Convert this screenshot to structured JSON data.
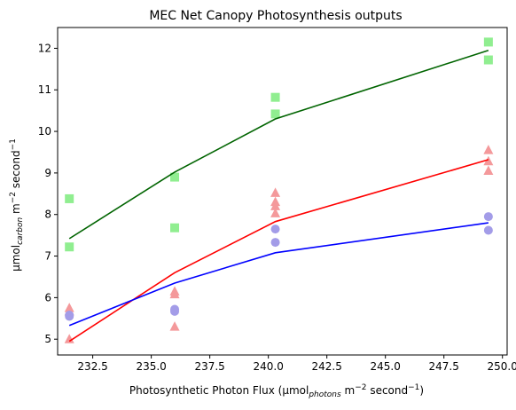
{
  "chart_data": {
    "type": "scatter",
    "title": "MEC Net Canopy Photosynthesis outputs",
    "xlabel": {
      "prefix": "Photosynthetic Photon Flux (µmol",
      "sub": "photons",
      "mid": " m",
      "sup1": "−2",
      "mid2": " second",
      "sup2": "−1",
      "suffix": ")"
    },
    "ylabel": {
      "prefix": "µmol",
      "sub": "carbon",
      "mid": " m",
      "sup1": "−2",
      "mid2": " second",
      "sup2": "−1"
    },
    "xlim": [
      231.0,
      250.2
    ],
    "ylim": [
      4.62,
      12.5
    ],
    "xticks": [
      232.5,
      235.0,
      237.5,
      240.0,
      242.5,
      245.0,
      247.5,
      250.0
    ],
    "xtick_labels": [
      "232.5",
      "235.0",
      "237.5",
      "240.0",
      "242.5",
      "245.0",
      "247.5",
      "250.0"
    ],
    "yticks": [
      5,
      6,
      7,
      8,
      9,
      10,
      11,
      12
    ],
    "ytick_labels": [
      "5",
      "6",
      "7",
      "8",
      "9",
      "10",
      "11",
      "12"
    ],
    "grid": false,
    "series": [
      {
        "marker": "square",
        "color": "#90ee90",
        "line_color": "#006400",
        "points": [
          [
            231.5,
            7.22
          ],
          [
            231.5,
            8.38
          ],
          [
            236.0,
            8.9
          ],
          [
            236.0,
            7.68
          ],
          [
            240.3,
            10.82
          ],
          [
            240.3,
            10.42
          ],
          [
            249.4,
            12.15
          ],
          [
            249.4,
            11.72
          ]
        ],
        "line": [
          [
            231.5,
            7.42
          ],
          [
            236.0,
            9.02
          ],
          [
            240.3,
            10.3
          ],
          [
            249.4,
            11.95
          ]
        ]
      },
      {
        "marker": "triangle",
        "color": "#f4999b",
        "line_color": "#ff0000",
        "points": [
          [
            231.5,
            5.75
          ],
          [
            231.5,
            5.67
          ],
          [
            231.5,
            5.0
          ],
          [
            236.0,
            6.15
          ],
          [
            236.0,
            6.08
          ],
          [
            236.0,
            5.3
          ],
          [
            240.3,
            8.52
          ],
          [
            240.3,
            8.3
          ],
          [
            240.3,
            8.2
          ],
          [
            240.3,
            8.03
          ],
          [
            249.4,
            9.55
          ],
          [
            249.4,
            9.28
          ],
          [
            249.4,
            9.05
          ]
        ],
        "line": [
          [
            231.5,
            4.95
          ],
          [
            236.0,
            6.6
          ],
          [
            240.3,
            7.83
          ],
          [
            249.4,
            9.32
          ]
        ]
      },
      {
        "marker": "circle",
        "color": "#a39ce8",
        "line_color": "#0000ff",
        "points": [
          [
            231.5,
            5.58
          ],
          [
            231.5,
            5.55
          ],
          [
            236.0,
            5.72
          ],
          [
            236.0,
            5.67
          ],
          [
            240.3,
            7.65
          ],
          [
            240.3,
            7.33
          ],
          [
            249.4,
            7.95
          ],
          [
            249.4,
            7.62
          ]
        ],
        "line": [
          [
            231.5,
            5.33
          ],
          [
            236.0,
            6.35
          ],
          [
            240.3,
            7.08
          ],
          [
            249.4,
            7.8
          ]
        ]
      }
    ]
  }
}
